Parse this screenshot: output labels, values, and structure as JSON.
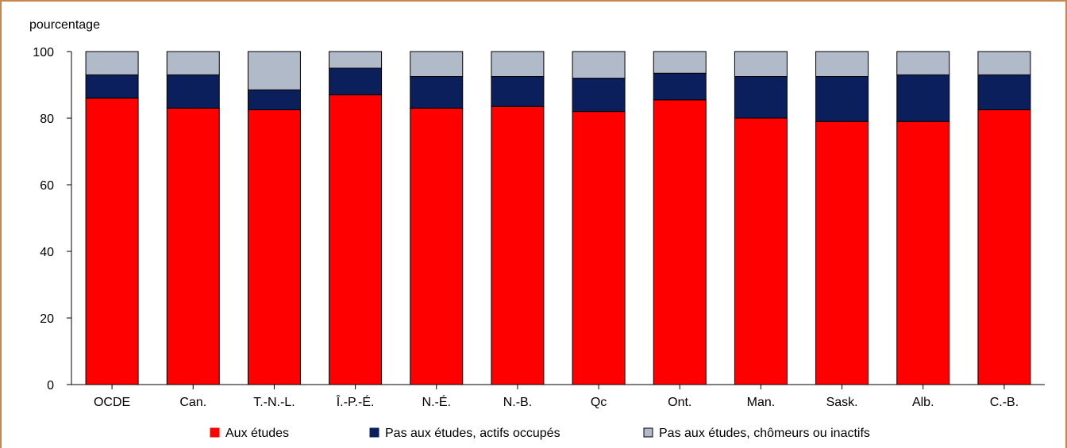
{
  "chart_data": {
    "type": "bar",
    "stacked": true,
    "title": "",
    "xlabel": "",
    "ylabel": "pourcentage",
    "ylim": [
      0,
      100
    ],
    "yticks": [
      0,
      20,
      40,
      60,
      80,
      100
    ],
    "grid": false,
    "legend_position": "bottom",
    "categories": [
      "OCDE",
      "Can.",
      "T.-N.-L.",
      "Î.-P.-É.",
      "N.-É.",
      "N.-B.",
      "Qc",
      "Ont.",
      "Man.",
      "Sask.",
      "Alb.",
      "C.-B."
    ],
    "series": [
      {
        "name": "Aux études",
        "color": "#ff0000",
        "values": [
          86,
          83,
          82.5,
          87,
          83,
          83.5,
          82,
          85.5,
          80,
          79,
          79,
          82.5
        ]
      },
      {
        "name": "Pas aux études, actifs occupés",
        "color": "#0a1f5c",
        "values": [
          7,
          10,
          6,
          8,
          9.5,
          9,
          10,
          8,
          12.5,
          13.5,
          14,
          10.5
        ]
      },
      {
        "name": "Pas aux études, chômeurs ou inactifs",
        "color": "#b1bac8",
        "values": [
          7,
          7,
          11.5,
          5,
          7.5,
          7.5,
          8,
          6.5,
          7.5,
          7.5,
          7,
          7
        ]
      }
    ]
  }
}
